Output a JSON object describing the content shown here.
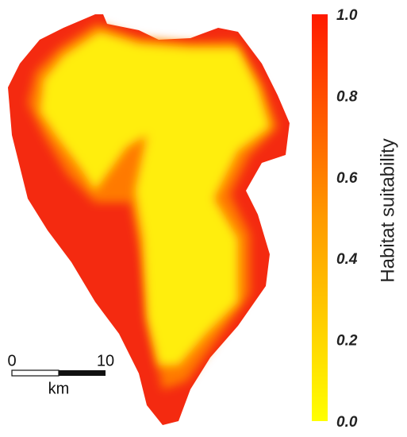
{
  "colorbar": {
    "label": "Habitat suitability",
    "lim": [
      0,
      1
    ],
    "ticks": [
      {
        "value": 0,
        "label": "0.0"
      },
      0.2,
      0.4,
      0.6,
      0.8,
      {
        "value": 1,
        "label": "1.0"
      }
    ]
  },
  "scale_bar": {
    "ticks": [
      0,
      10
    ],
    "unit": "km"
  }
}
